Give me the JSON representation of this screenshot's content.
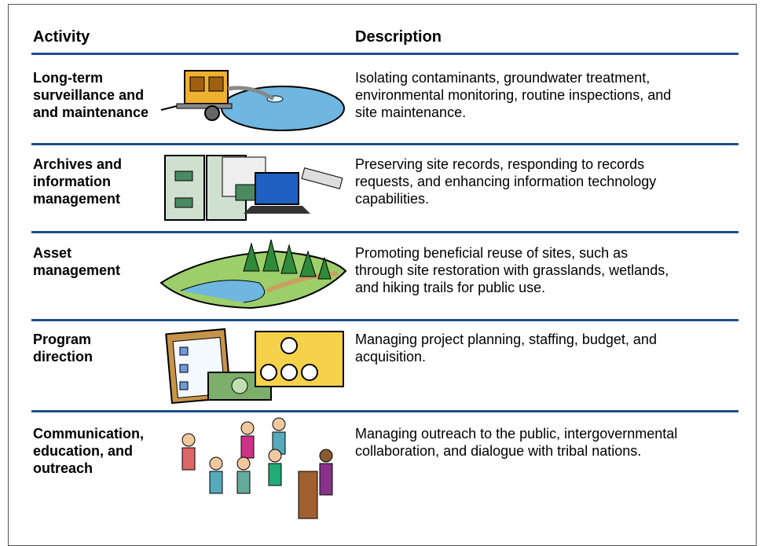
{
  "header": {
    "activity": "Activity",
    "description": "Description"
  },
  "rows": [
    {
      "activity": [
        "Long-term",
        "surveillance and",
        "and maintenance"
      ],
      "description": [
        "Isolating contaminants, groundwater treatment,",
        "environmental monitoring, routine inspections, and",
        "site maintenance."
      ]
    },
    {
      "activity": [
        "Archives and",
        "information",
        "management"
      ],
      "description": [
        "Preserving site records, responding to records",
        "requests, and enhancing information technology",
        "capabilities."
      ]
    },
    {
      "activity": [
        "Asset",
        "management"
      ],
      "description": [
        "Promoting beneficial reuse of sites, such as",
        "through site restoration with grasslands, wetlands,",
        "and hiking trails for public use."
      ]
    },
    {
      "activity": [
        "Program",
        "direction"
      ],
      "description": [
        "Managing project planning, staffing, budget, and",
        "acquisition."
      ]
    },
    {
      "activity": [
        "Communication,",
        "education, and",
        "outreach"
      ],
      "description": [
        "Managing outreach to the public, intergovernmental",
        "collaboration, and dialogue with tribal nations."
      ]
    }
  ]
}
